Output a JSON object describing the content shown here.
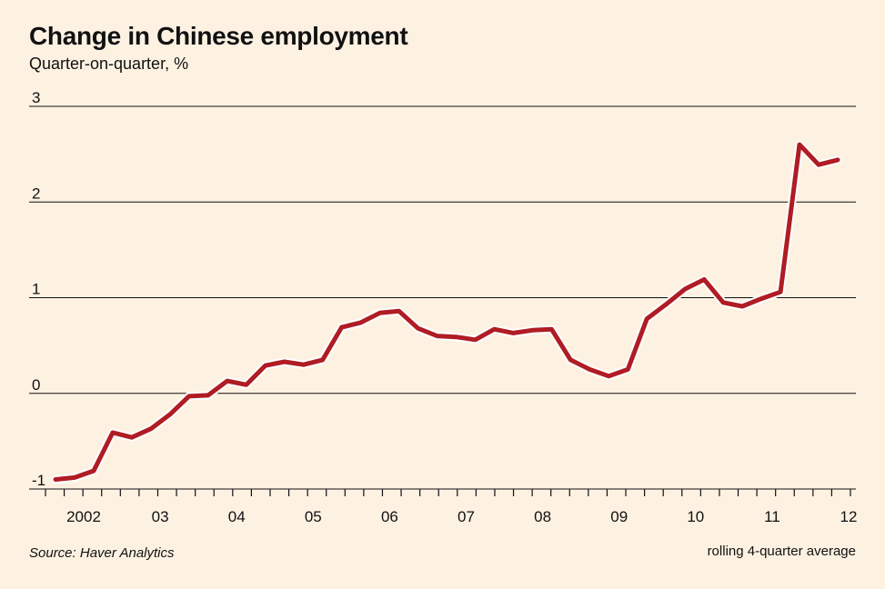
{
  "header": {
    "title": "Change in Chinese employment",
    "subtitle": "Quarter-on-quarter, %"
  },
  "footer": {
    "source": "Source: Haver Analytics",
    "note": "rolling 4-quarter average"
  },
  "colors": {
    "background": "#fdf1e2",
    "line": "#b01c24",
    "grid": "#111111"
  },
  "chart_data": {
    "type": "line",
    "title": "Change in Chinese employment",
    "subtitle": "Quarter-on-quarter, %",
    "xlabel": "",
    "ylabel": "",
    "ylim": [
      -1,
      3
    ],
    "yticks": [
      -1,
      0,
      1,
      2,
      3
    ],
    "ytick_labels": [
      "-1",
      "0",
      "1",
      "2",
      "3"
    ],
    "x_year_labels": [
      "2002",
      "03",
      "04",
      "05",
      "06",
      "07",
      "08",
      "09",
      "10",
      "11",
      "12"
    ],
    "x_tick_count": 44,
    "grid": true,
    "series": [
      {
        "values": [
          -0.9,
          -0.88,
          -0.81,
          -0.41,
          -0.46,
          -0.37,
          -0.22,
          -0.03,
          -0.02,
          0.13,
          0.09,
          0.29,
          0.33,
          0.3,
          0.35,
          0.69,
          0.74,
          0.84,
          0.86,
          0.68,
          0.6,
          0.59,
          0.56,
          0.67,
          0.63,
          0.66,
          0.67,
          0.35,
          0.25,
          0.18,
          0.25,
          0.78,
          0.93,
          1.09,
          1.19,
          0.95,
          0.91,
          0.99,
          1.06,
          2.6,
          2.39,
          2.44
        ]
      }
    ]
  }
}
